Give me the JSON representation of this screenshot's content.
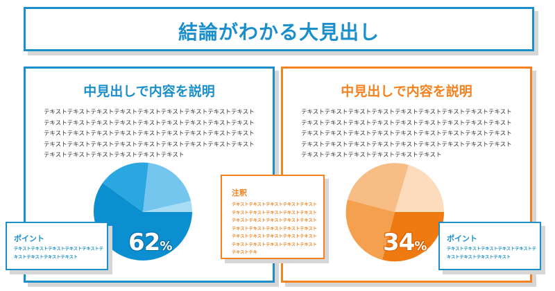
{
  "title": "結論がわかる大見出し",
  "left_panel": {
    "heading": "中見出しで内容を説明",
    "body": "テキストテキストテキストテキストテキストテキストテキストテキストテキストテキストテキストテキストテキストテキストテキストテキストテキストテキストテキストテキストテキストテキストテキストテキストテキストテキストテキストテキストテキストテキストテキストテキストテキストテキストテキストテキストテキストテキストテキストテキストテキストテキスト",
    "percent_value": "62",
    "percent_unit": "%",
    "point": {
      "title": "ポイント",
      "text": "テキストテキストテキストテキストテキストテキストテキストテキストテキスト"
    }
  },
  "right_panel": {
    "heading": "中見出しで内容を説明",
    "body": "テキストテキストテキストテキストテキストテキストテキストテキストテキストテキストテキストテキストテキストテキストテキストテキストテキストテキストテキストテキストテキストテキストテキストテキストテキストテキストテキストテキストテキストテキストテキストテキストテキストテキストテキストテキストテキストテキストテキストテキストテキストテキスト",
    "percent_value": "34",
    "percent_unit": "%",
    "point": {
      "title": "ポイント",
      "text": "テキストテキストテキストテキストテキストテキストテキストテキストテキスト"
    }
  },
  "note": {
    "title": "注釈",
    "text": "テキストテキストテキストテキストテキストテキストテキストテキストテキストテキストテキストテキストテキストテキストテキストテキストテキストテキストテキストテキストテキストテキストテキストテキストテキストテキストテキストテキストテキストテキストテキストテキ"
  },
  "colors": {
    "blue_accent": "#1a8fcc",
    "orange_accent": "#f5821f"
  }
}
